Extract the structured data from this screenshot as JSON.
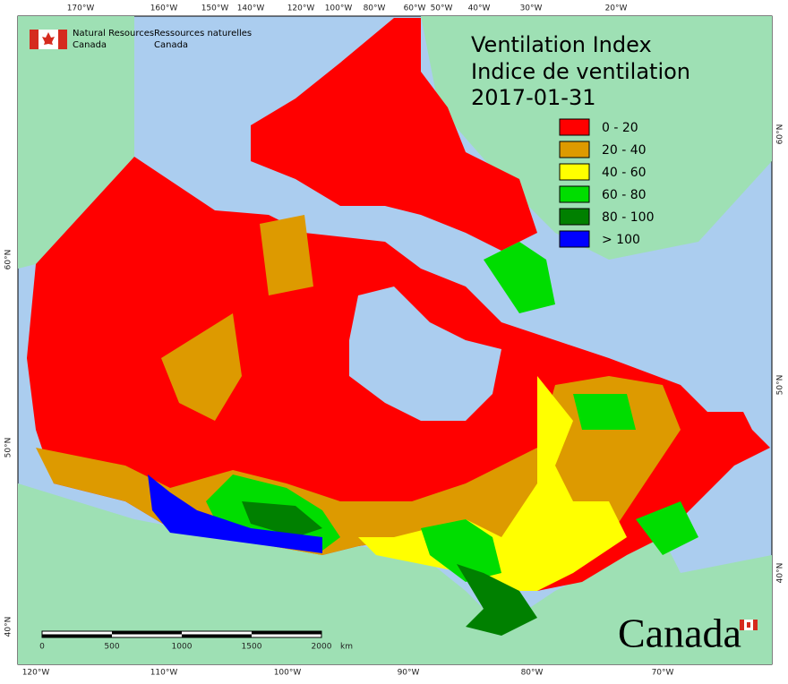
{
  "header": {
    "agency_en": [
      "Natural Resources",
      "Canada"
    ],
    "agency_fr": [
      "Ressources naturelles",
      "Canada"
    ]
  },
  "title": {
    "line1": "Ventilation Index",
    "line2": "Indice de ventilation",
    "date": "2017-01-31"
  },
  "legend": [
    {
      "label": "0 - 20",
      "color": "#ff0000"
    },
    {
      "label": "20 - 40",
      "color": "#dd9a00"
    },
    {
      "label": "40 - 60",
      "color": "#ffff00"
    },
    {
      "label": "60 - 80",
      "color": "#00dd00"
    },
    {
      "label": "80 - 100",
      "color": "#008000"
    },
    {
      "label": "> 100",
      "color": "#0000ff"
    }
  ],
  "graticule": {
    "top": [
      "170°W",
      "160°W",
      "150°W",
      "140°W",
      "120°W",
      "100°W",
      "80°W",
      "60°W",
      "50°W",
      "40°W",
      "30°W",
      "20°W"
    ],
    "bottom": [
      "120°W",
      "110°W",
      "100°W",
      "90°W",
      "80°W",
      "70°W"
    ],
    "left": [
      "60°N",
      "50°N",
      "40°N"
    ],
    "right": [
      "60°N",
      "50°N",
      "40°N"
    ]
  },
  "scale_bar": {
    "labels": [
      "0",
      "500",
      "1000",
      "1500",
      "2000"
    ],
    "unit": "km"
  },
  "wordmark": "Canada"
}
